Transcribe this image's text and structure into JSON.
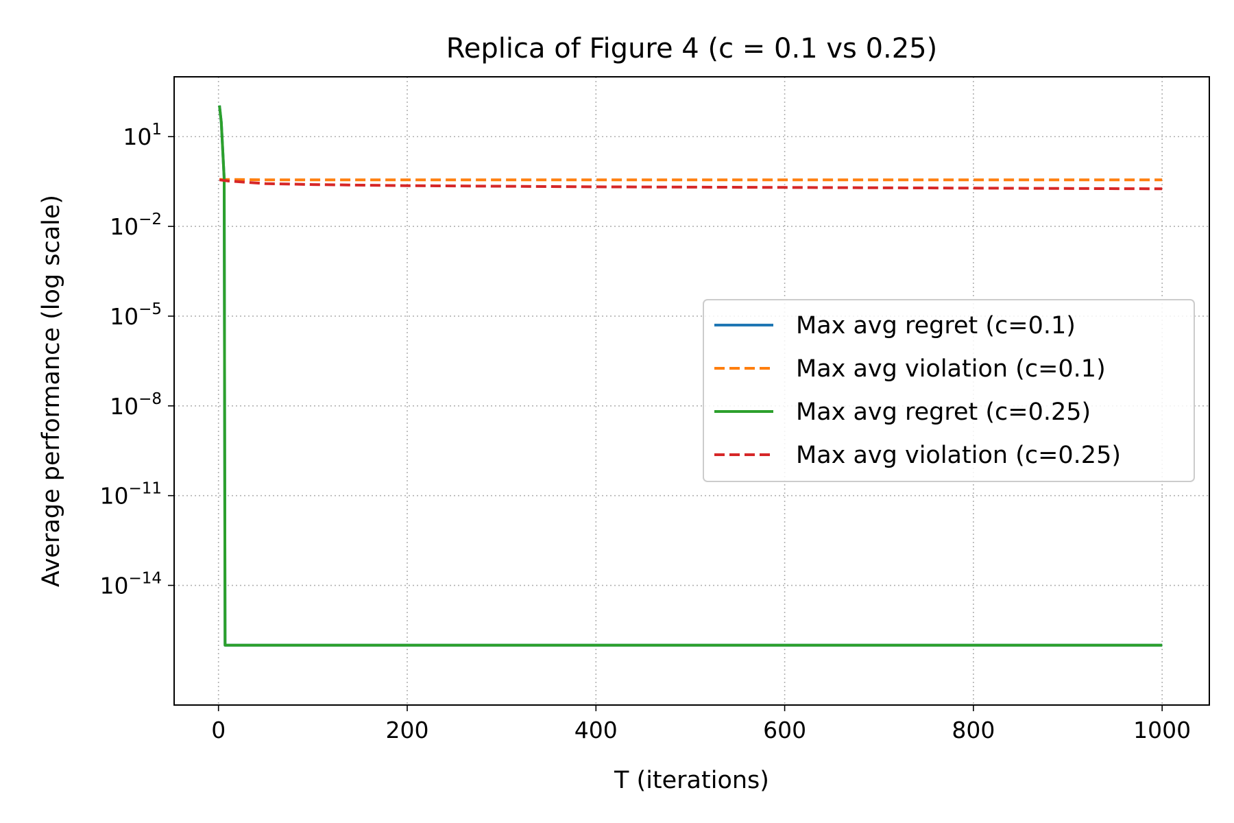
{
  "chart_data": {
    "type": "line",
    "title": "Replica of Figure 4 (c = 0.1 vs 0.25)",
    "xlabel": "T (iterations)",
    "ylabel": "Average performance (log scale)",
    "xlim": [
      -47,
      1050
    ],
    "ylim": [
      1e-18,
      1000.0
    ],
    "yscale": "log",
    "grid": true,
    "legend_position": "center-right",
    "x_ticks": [
      0,
      200,
      400,
      600,
      800,
      1000
    ],
    "y_ticks": [
      {
        "value": 10,
        "base": "10",
        "exp": "1"
      },
      {
        "value": 0.01,
        "base": "10",
        "exp": "−2"
      },
      {
        "value": 1e-05,
        "base": "10",
        "exp": "−5"
      },
      {
        "value": 1e-08,
        "base": "10",
        "exp": "−8"
      },
      {
        "value": 1e-11,
        "base": "10",
        "exp": "−11"
      },
      {
        "value": 1e-14,
        "base": "10",
        "exp": "−14"
      }
    ],
    "series": [
      {
        "name": "Max avg regret (c=0.1)",
        "color": "#1f77b4",
        "style": "solid",
        "x": [
          1,
          3,
          6,
          7,
          1000
        ],
        "y": [
          110,
          30,
          0.4,
          1e-16,
          1e-16
        ]
      },
      {
        "name": "Max avg violation (c=0.1)",
        "color": "#ff7f0e",
        "style": "dashed",
        "x": [
          1,
          10,
          50,
          100,
          200,
          400,
          600,
          800,
          1000
        ],
        "y": [
          0.37,
          0.37,
          0.36,
          0.36,
          0.36,
          0.36,
          0.36,
          0.36,
          0.36
        ]
      },
      {
        "name": "Max avg regret (c=0.25)",
        "color": "#2ca02c",
        "style": "solid",
        "x": [
          1,
          3,
          6,
          7,
          1000
        ],
        "y": [
          110,
          30,
          0.4,
          1e-16,
          1e-16
        ]
      },
      {
        "name": "Max avg violation (c=0.25)",
        "color": "#d62728",
        "style": "dashed",
        "x": [
          1,
          10,
          50,
          100,
          200,
          400,
          600,
          800,
          1000
        ],
        "y": [
          0.36,
          0.33,
          0.27,
          0.25,
          0.23,
          0.21,
          0.2,
          0.19,
          0.18
        ]
      }
    ]
  }
}
